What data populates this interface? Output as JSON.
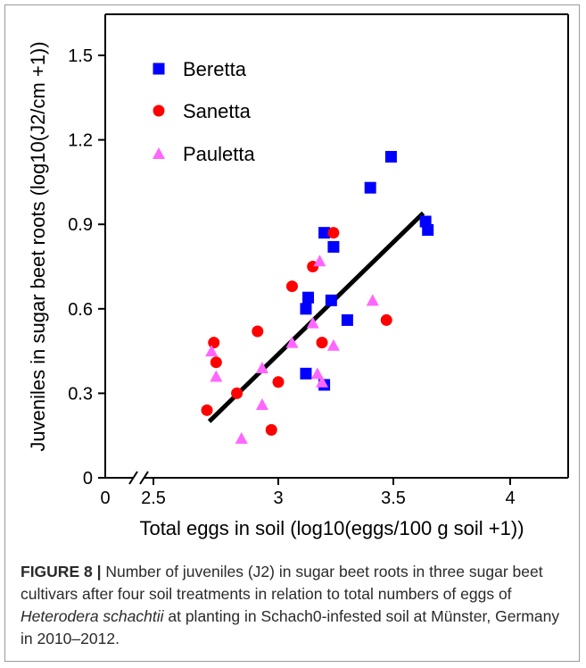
{
  "chart_data": {
    "type": "scatter",
    "title": "",
    "xlabel": "Total eggs in soil (log10(eggs/100 g soil +1))",
    "ylabel": "Juveniles in sugar beet roots (log10(J2/cm +1))",
    "x_ticks": [
      "0",
      "2.5",
      "3",
      "3.5",
      "4"
    ],
    "y_ticks": [
      "0",
      "0.3",
      "0.6",
      "0.9",
      "1.2",
      "1.5"
    ],
    "axis_break_marker": "//",
    "xlim": [
      2.5,
      4.25
    ],
    "ylim": [
      0,
      1.6
    ],
    "legend_placement": "top-left",
    "series": [
      {
        "name": "Beretta",
        "marker": "square",
        "color": "#0000ff",
        "points": [
          [
            3.12,
            0.37
          ],
          [
            3.12,
            0.6
          ],
          [
            3.13,
            0.64
          ],
          [
            3.2,
            0.33
          ],
          [
            3.2,
            0.87
          ],
          [
            3.23,
            0.63
          ],
          [
            3.24,
            0.82
          ],
          [
            3.3,
            0.56
          ],
          [
            3.4,
            1.03
          ],
          [
            3.49,
            1.14
          ],
          [
            3.64,
            0.91
          ],
          [
            3.65,
            0.88
          ]
        ]
      },
      {
        "name": "Sanetta",
        "marker": "circle",
        "color": "#ff0000",
        "points": [
          [
            2.69,
            0.24
          ],
          [
            2.72,
            0.48
          ],
          [
            2.73,
            0.41
          ],
          [
            2.82,
            0.3
          ],
          [
            2.91,
            0.52
          ],
          [
            2.97,
            0.17
          ],
          [
            3.0,
            0.34
          ],
          [
            3.06,
            0.68
          ],
          [
            3.15,
            0.75
          ],
          [
            3.19,
            0.48
          ],
          [
            3.24,
            0.87
          ],
          [
            3.47,
            0.56
          ]
        ]
      },
      {
        "name": "Pauletta",
        "marker": "triangle",
        "color": "#ff66ff",
        "points": [
          [
            2.71,
            0.45
          ],
          [
            2.73,
            0.36
          ],
          [
            2.84,
            0.14
          ],
          [
            2.93,
            0.39
          ],
          [
            2.93,
            0.26
          ],
          [
            3.06,
            0.48
          ],
          [
            3.15,
            0.55
          ],
          [
            3.17,
            0.37
          ],
          [
            3.18,
            0.77
          ],
          [
            3.19,
            0.34
          ],
          [
            3.24,
            0.47
          ],
          [
            3.41,
            0.63
          ]
        ]
      }
    ],
    "regression_line": {
      "color": "#000000",
      "x": [
        2.7,
        3.63
      ],
      "y": [
        0.2,
        0.94
      ]
    }
  },
  "caption": {
    "label": "FIGURE 8 |",
    "text_before_italic": " Number of juveniles (J2) in sugar beet roots in three sugar beet cultivars after four soil treatments in relation to total numbers of eggs of ",
    "italic": "Heterodera schachtii",
    "text_after_italic": " at planting in Schach0-infested soil at Münster, Germany in 2010–2012."
  }
}
